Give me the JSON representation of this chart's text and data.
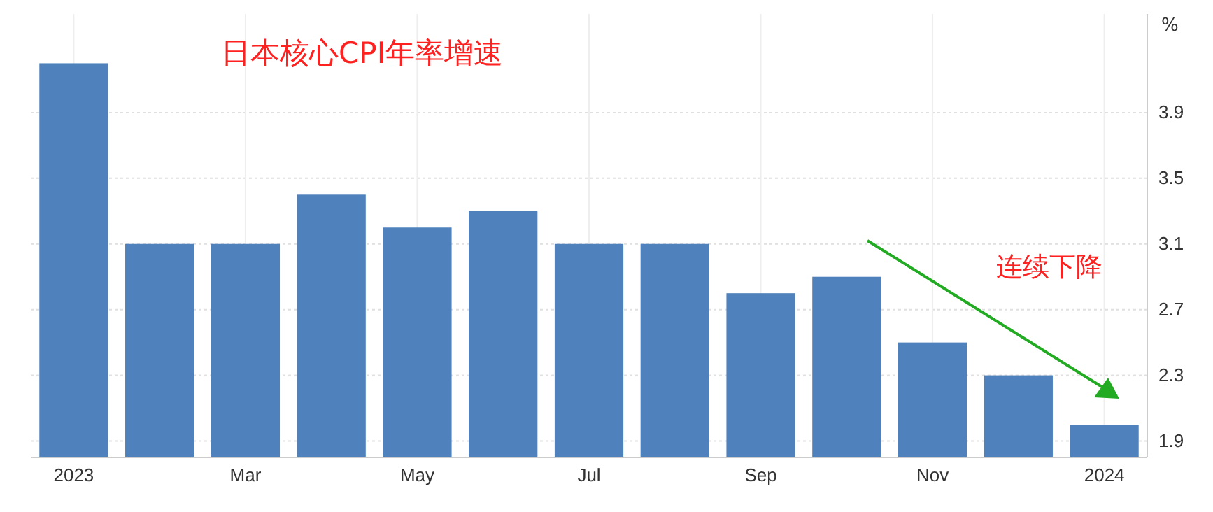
{
  "chart_data": {
    "type": "bar",
    "title": "日本核心CPI年率增速",
    "ylabel": "%",
    "categories": [
      "2023",
      null,
      "Mar",
      null,
      "May",
      null,
      "Jul",
      null,
      "Sep",
      null,
      "Nov",
      null,
      "2024"
    ],
    "values": [
      4.2,
      3.1,
      3.1,
      3.4,
      3.2,
      3.3,
      3.1,
      3.1,
      2.8,
      2.9,
      2.5,
      2.3,
      2.0
    ],
    "color": "#4f81bd",
    "ylim": [
      1.8,
      4.5
    ],
    "yticks": [
      1.9,
      2.3,
      2.7,
      3.1,
      3.5,
      3.9
    ],
    "grid": true,
    "annotations": [
      "连续下降"
    ]
  }
}
